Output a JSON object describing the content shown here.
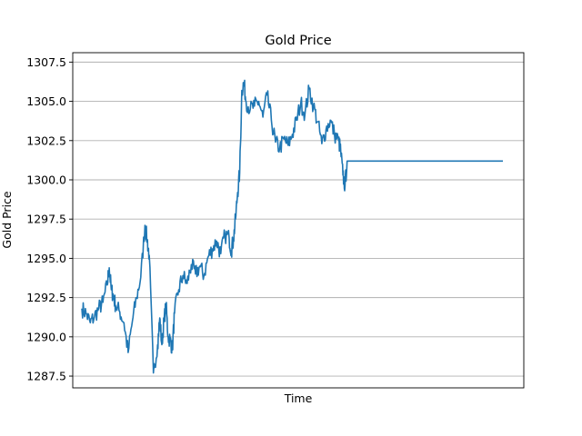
{
  "chart_data": {
    "type": "line",
    "title": "Gold Price",
    "xlabel": "Time",
    "ylabel": "Gold Price",
    "ylim": [
      1286.75,
      1308.1
    ],
    "yticks": [
      "1287.5",
      "1290.0",
      "1292.5",
      "1295.0",
      "1297.5",
      "1300.0",
      "1302.5",
      "1305.0",
      "1307.5"
    ],
    "ytick_values": [
      1287.5,
      1290.0,
      1292.5,
      1295.0,
      1297.5,
      1300.0,
      1302.5,
      1305.0,
      1307.5
    ],
    "xlim": [
      0,
      100
    ],
    "grid": "horizontal",
    "color": "#1f77b4",
    "series": [
      {
        "x": [
          0,
          1,
          2,
          3,
          4,
          5,
          6,
          6.5,
          7,
          7.5,
          8,
          9,
          10,
          11,
          12,
          13,
          14,
          15,
          15.5,
          16,
          17,
          18,
          18.5,
          19,
          19.5,
          20,
          20.5,
          21,
          21.5,
          22,
          23,
          24,
          25,
          26,
          27,
          28,
          29,
          30,
          31,
          32,
          33,
          34,
          35,
          35.5,
          36,
          36.5,
          37,
          37.5,
          38,
          38.5,
          39,
          40,
          41,
          42,
          43,
          44,
          45,
          46,
          47,
          48,
          49,
          50,
          51,
          52,
          53,
          54,
          55,
          56,
          57,
          58,
          59,
          60,
          61,
          61.5,
          62,
          62.5,
          63,
          64,
          65,
          66,
          68,
          70,
          75,
          80,
          85,
          90,
          95,
          100
        ],
        "y": [
          1291.8,
          1291.5,
          1290.9,
          1291.3,
          1291.8,
          1292.2,
          1293.3,
          1294.4,
          1293.0,
          1292.6,
          1292.0,
          1291.6,
          1290.9,
          1289.0,
          1291.0,
          1292.5,
          1293.8,
          1297.1,
          1296.2,
          1295.2,
          1287.7,
          1289.5,
          1291.2,
          1289.5,
          1291.0,
          1292.0,
          1290.0,
          1289.8,
          1289.2,
          1291.5,
          1293.0,
          1293.9,
          1293.4,
          1294.6,
          1294.0,
          1294.5,
          1293.9,
          1295.1,
          1295.6,
          1296.1,
          1295.3,
          1296.5,
          1296.3,
          1295.5,
          1296.2,
          1297.5,
          1299.2,
          1300.5,
          1305.7,
          1306.2,
          1305.0,
          1304.5,
          1304.7,
          1305.0,
          1304.0,
          1305.4,
          1303.8,
          1302.4,
          1302.0,
          1302.6,
          1302.2,
          1302.9,
          1303.8,
          1304.9,
          1304.2,
          1305.8,
          1304.7,
          1303.7,
          1302.3,
          1303.2,
          1303.8,
          1302.9,
          1302.5,
          1301.8,
          1300.3,
          1299.6,
          1301.2,
          1301.2,
          1301.2,
          1301.2,
          1301.2,
          1301.2,
          1301.2,
          1301.2,
          1301.2,
          1301.2,
          1301.2,
          1301.2
        ]
      }
    ]
  }
}
